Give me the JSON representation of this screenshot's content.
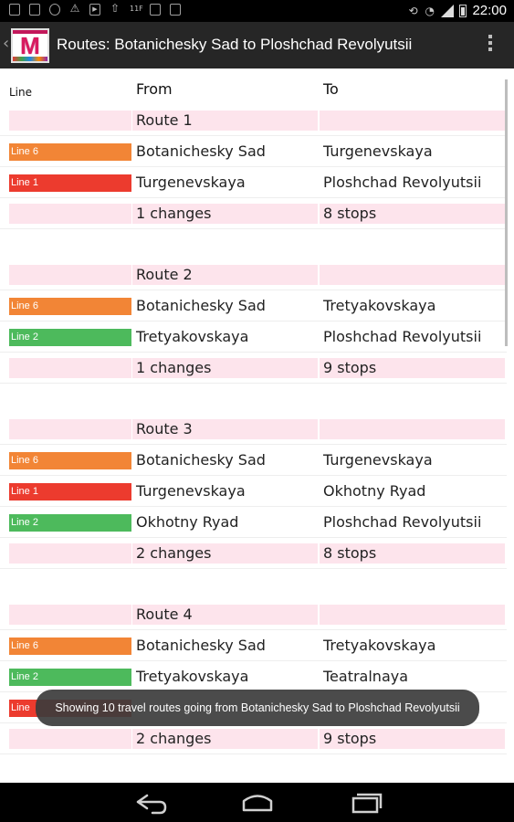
{
  "status_bar": {
    "time": "22:00",
    "left_icons": [
      "gallery-icon",
      "card-icon",
      "recycle-icon",
      "warning-icon",
      "play-icon",
      "download-icon",
      "11f-icon",
      "gallery-icon",
      "bag-icon"
    ],
    "right_icons": [
      "rotate-icon",
      "wifi-icon",
      "signal-icon",
      "battery-icon"
    ]
  },
  "action_bar": {
    "logo_letter": "M",
    "title": "Routes: Botanichesky Sad to Ploshchad Revolyutsii"
  },
  "table": {
    "headers": {
      "line": "Line",
      "from": "From",
      "to": "To"
    },
    "colors": {
      "Line 6": "#f28536",
      "Line 1": "#ec3b2e",
      "Line 2": "#4dba5c",
      "pink": "#fde4ec"
    },
    "rows": [
      {
        "type": "route",
        "from": "Route 1",
        "to": ""
      },
      {
        "type": "segment",
        "line": "Line 6",
        "from": "Botanichesky Sad",
        "to": "Turgenevskaya"
      },
      {
        "type": "segment",
        "line": "Line 1",
        "from": "Turgenevskaya",
        "to": "Ploshchad Revolyutsii"
      },
      {
        "type": "summary",
        "from": "1 changes",
        "to": "8 stops"
      },
      {
        "type": "spacer"
      },
      {
        "type": "route",
        "from": "Route 2",
        "to": ""
      },
      {
        "type": "segment",
        "line": "Line 6",
        "from": "Botanichesky Sad",
        "to": "Tretyakovskaya"
      },
      {
        "type": "segment",
        "line": "Line 2",
        "from": "Tretyakovskaya",
        "to": "Ploshchad Revolyutsii"
      },
      {
        "type": "summary",
        "from": "1 changes",
        "to": "9 stops"
      },
      {
        "type": "spacer"
      },
      {
        "type": "route",
        "from": "Route 3",
        "to": ""
      },
      {
        "type": "segment",
        "line": "Line 6",
        "from": "Botanichesky Sad",
        "to": "Turgenevskaya"
      },
      {
        "type": "segment",
        "line": "Line 1",
        "from": "Turgenevskaya",
        "to": "Okhotny Ryad"
      },
      {
        "type": "segment",
        "line": "Line 2",
        "from": "Okhotny Ryad",
        "to": "Ploshchad Revolyutsii"
      },
      {
        "type": "summary",
        "from": "2 changes",
        "to": "8 stops"
      },
      {
        "type": "spacer"
      },
      {
        "type": "route",
        "from": "Route 4",
        "to": ""
      },
      {
        "type": "segment",
        "line": "Line 6",
        "from": "Botanichesky Sad",
        "to": "Tretyakovskaya"
      },
      {
        "type": "segment",
        "line": "Line 2",
        "from": "Tretyakovskaya",
        "to": "Teatralnaya"
      },
      {
        "type": "segment",
        "line": "Line",
        "from": "",
        "to": ""
      },
      {
        "type": "summary",
        "from": "2 changes",
        "to": "9 stops"
      }
    ]
  },
  "toast": {
    "message": "Showing 10 travel routes going from Botanichesky Sad to Ploshchad Revolyutsii"
  },
  "nav_bar": {
    "buttons": [
      "back-icon",
      "home-icon",
      "recent-apps-icon"
    ]
  }
}
